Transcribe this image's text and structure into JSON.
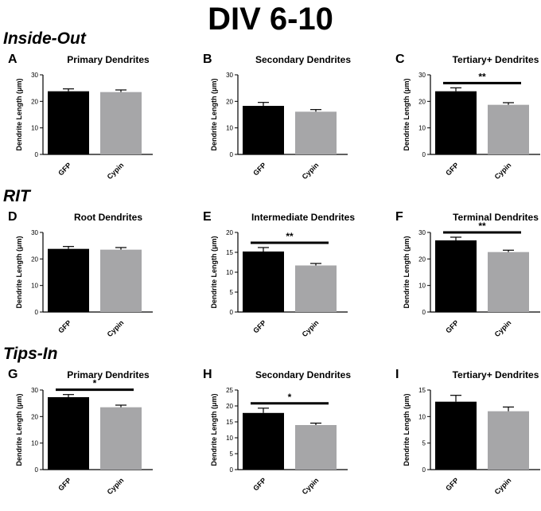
{
  "title": "DIV 6-10",
  "sections": [
    "Inside-Out",
    "RIT",
    "Tips-In"
  ],
  "colors": {
    "gfp": "#000000",
    "cypin": "#a6a6a8",
    "axis": "#000000"
  },
  "chart_data": [
    {
      "panel": "A",
      "section": "Inside-Out",
      "type": "bar",
      "title": "Primary Dendrites",
      "ylabel": "Dendrite Length (μm)",
      "ylim": [
        0,
        30
      ],
      "yticks": [
        0,
        10,
        20,
        30
      ],
      "tick_labels": [
        "0",
        "10",
        "20",
        "30"
      ],
      "categories": [
        "GFP",
        "Cypin"
      ],
      "values": [
        23.8,
        23.5
      ],
      "errors": [
        0.9,
        0.8
      ],
      "significance": ""
    },
    {
      "panel": "B",
      "section": "Inside-Out",
      "type": "bar",
      "title": "Secondary Dendrites",
      "ylabel": "Dendrite Length (μm)",
      "ylim": [
        0,
        30
      ],
      "yticks": [
        0,
        10,
        20,
        30
      ],
      "tick_labels": [
        "0",
        "10",
        "20",
        "30"
      ],
      "categories": [
        "GFP",
        "Cypin"
      ],
      "values": [
        18.3,
        16.1
      ],
      "errors": [
        1.3,
        0.8
      ],
      "significance": ""
    },
    {
      "panel": "C",
      "section": "Inside-Out",
      "type": "bar",
      "title": "Tertiary+ Dendrites",
      "ylabel": "Dendrite Length (μm)",
      "ylim": [
        0,
        30
      ],
      "yticks": [
        0,
        10,
        20,
        30
      ],
      "tick_labels": [
        "0",
        "10",
        "20",
        "30"
      ],
      "categories": [
        "GFP",
        "Cypin"
      ],
      "values": [
        23.8,
        18.7
      ],
      "errors": [
        1.3,
        0.8
      ],
      "significance": "**"
    },
    {
      "panel": "D",
      "section": "RIT",
      "type": "bar",
      "title": "Root Dendrites",
      "ylabel": "Dendrite Length (μm)",
      "ylim": [
        0,
        30
      ],
      "yticks": [
        0,
        10,
        20,
        30
      ],
      "tick_labels": [
        "0",
        "10",
        "20",
        "30"
      ],
      "categories": [
        "GFP",
        "Cypin"
      ],
      "values": [
        23.8,
        23.5
      ],
      "errors": [
        0.9,
        0.8
      ],
      "significance": ""
    },
    {
      "panel": "E",
      "section": "RIT",
      "type": "bar",
      "title": "Intermediate Dendrites",
      "ylabel": "Dendrite Length (μm)",
      "ylim": [
        0,
        20
      ],
      "yticks": [
        0,
        5,
        10,
        15,
        20
      ],
      "tick_labels": [
        "0",
        "5",
        "10",
        "15",
        "20"
      ],
      "categories": [
        "GFP",
        "Cypin"
      ],
      "values": [
        15.2,
        11.7
      ],
      "errors": [
        1.0,
        0.5
      ],
      "significance": "**"
    },
    {
      "panel": "F",
      "section": "RIT",
      "type": "bar",
      "title": "Terminal Dendrites",
      "ylabel": "Dendrite Length (μm)",
      "ylim": [
        0,
        30
      ],
      "yticks": [
        0,
        10,
        20,
        30
      ],
      "tick_labels": [
        "0",
        "10",
        "20",
        "30"
      ],
      "categories": [
        "GFP",
        "Cypin"
      ],
      "values": [
        27.0,
        22.6
      ],
      "errors": [
        1.2,
        0.7
      ],
      "significance": "**"
    },
    {
      "panel": "G",
      "section": "Tips-In",
      "type": "bar",
      "title": "Primary Dendrites",
      "ylabel": "Dendrite Length (μm)",
      "ylim": [
        0,
        30
      ],
      "yticks": [
        0,
        10,
        20,
        30
      ],
      "tick_labels": [
        "0",
        "10",
        "20",
        "30"
      ],
      "categories": [
        "GFP",
        "Cypin"
      ],
      "values": [
        27.3,
        23.5
      ],
      "errors": [
        1.0,
        0.8
      ],
      "significance": "*"
    },
    {
      "panel": "H",
      "section": "Tips-In",
      "type": "bar",
      "title": "Secondary Dendrites",
      "ylabel": "Dendrite Length (μm)",
      "ylim": [
        0,
        25
      ],
      "yticks": [
        0,
        5,
        10,
        15,
        20,
        25
      ],
      "tick_labels": [
        "0",
        "5",
        "10",
        "15",
        "20",
        "25"
      ],
      "categories": [
        "GFP",
        "Cypin"
      ],
      "values": [
        17.8,
        14.0
      ],
      "errors": [
        1.5,
        0.6
      ],
      "significance": "*"
    },
    {
      "panel": "I",
      "section": "Tips-In",
      "type": "bar",
      "title": "Tertiary+ Dendrites",
      "ylabel": "Dendrite Length (μm)",
      "ylim": [
        0,
        15
      ],
      "yticks": [
        0,
        5,
        10,
        15
      ],
      "tick_labels": [
        "0",
        "5",
        "10",
        "15"
      ],
      "categories": [
        "GFP",
        "Cypin"
      ],
      "values": [
        12.8,
        11.0
      ],
      "errors": [
        1.2,
        0.8
      ],
      "significance": ""
    }
  ]
}
